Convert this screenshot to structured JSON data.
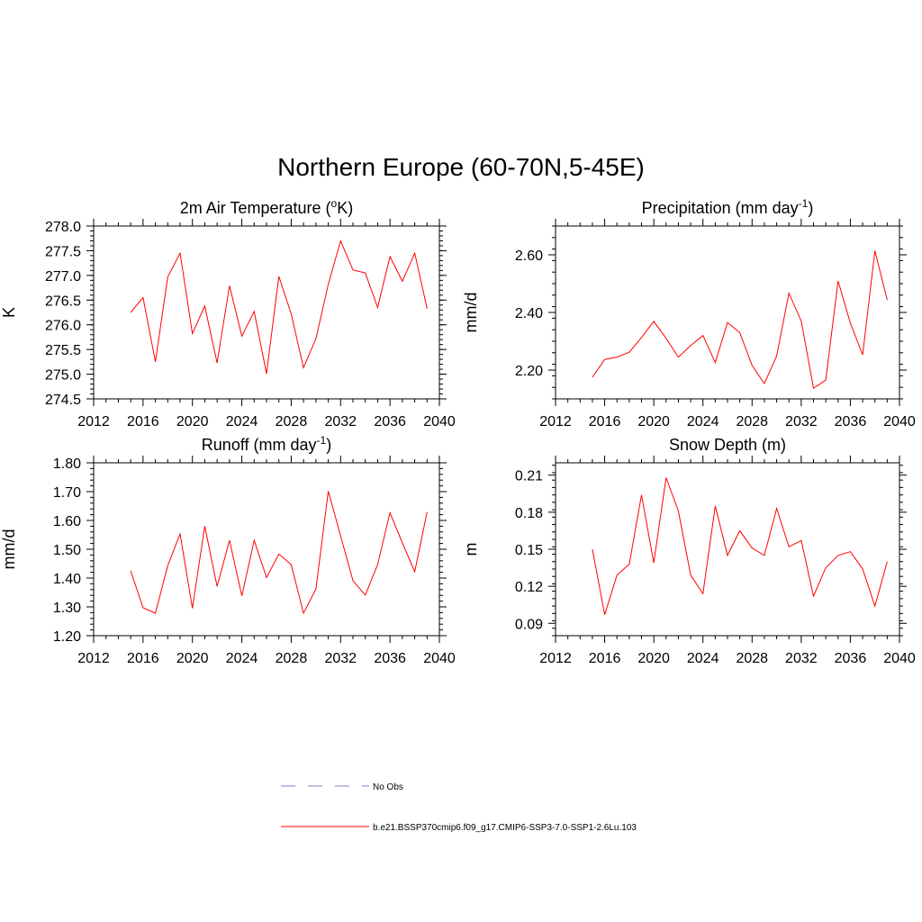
{
  "figure": {
    "title": "Northern Europe (60-70N,5-45E)"
  },
  "legend": {
    "items": [
      {
        "label": "No Obs",
        "color": "#9999dd",
        "dash": "dashed"
      },
      {
        "label": "b.e21.BSSP370cmip6.f09_g17.CMIP6-SSP3-7.0-SSP1-2.6Lu.103",
        "color": "#ff0000",
        "dash": "solid"
      }
    ]
  },
  "chart_data": [
    {
      "id": "temp",
      "type": "line",
      "title": "2m Air Temperature (",
      "title_sup": "o",
      "title_after": "K)",
      "ylabel": "K",
      "xlim": [
        2012,
        2040
      ],
      "ylim": [
        274.5,
        278.0
      ],
      "xticks": [
        "2012",
        "2016",
        "2020",
        "2024",
        "2028",
        "2032",
        "2036",
        "2040"
      ],
      "yticks": [
        "274.5",
        "275.0",
        "275.5",
        "276.0",
        "276.5",
        "277.0",
        "277.5",
        "278.0"
      ],
      "yminor": 0.1,
      "color": "#ff0000",
      "x": [
        2015,
        2016,
        2017,
        2018,
        2019,
        2020,
        2021,
        2022,
        2023,
        2024,
        2025,
        2026,
        2027,
        2028,
        2029,
        2030,
        2031,
        2032,
        2033,
        2034,
        2035,
        2036,
        2037,
        2038,
        2039
      ],
      "values": [
        276.25,
        276.55,
        275.25,
        276.97,
        277.45,
        275.82,
        276.38,
        275.23,
        276.79,
        275.77,
        276.27,
        275.01,
        276.98,
        276.22,
        275.13,
        275.72,
        276.82,
        277.7,
        277.11,
        277.05,
        276.35,
        277.38,
        276.88,
        277.45,
        276.33
      ]
    },
    {
      "id": "precip",
      "type": "line",
      "title": "Precipitation (mm day",
      "title_sup": "-1",
      "title_after": ")",
      "ylabel": "mm/d",
      "xlim": [
        2012,
        2040
      ],
      "ylim": [
        2.1,
        2.7
      ],
      "xticks": [
        "2012",
        "2016",
        "2020",
        "2024",
        "2028",
        "2032",
        "2036",
        "2040"
      ],
      "yticks": [
        "2.20",
        "2.40",
        "2.60"
      ],
      "yminor": 0.04,
      "color": "#ff0000",
      "x": [
        2015,
        2016,
        2017,
        2018,
        2019,
        2020,
        2021,
        2022,
        2023,
        2024,
        2025,
        2026,
        2027,
        2028,
        2029,
        2030,
        2031,
        2032,
        2033,
        2034,
        2035,
        2036,
        2037,
        2038,
        2039
      ],
      "values": [
        2.175,
        2.237,
        2.245,
        2.262,
        2.313,
        2.369,
        2.31,
        2.245,
        2.285,
        2.32,
        2.226,
        2.365,
        2.33,
        2.216,
        2.153,
        2.249,
        2.467,
        2.37,
        2.137,
        2.165,
        2.509,
        2.363,
        2.253,
        2.614,
        2.443
      ]
    },
    {
      "id": "runoff",
      "type": "line",
      "title": "Runoff (mm day",
      "title_sup": "-1",
      "title_after": ")",
      "ylabel": "mm/d",
      "xlim": [
        2012,
        2040
      ],
      "ylim": [
        1.2,
        1.8
      ],
      "xticks": [
        "2012",
        "2016",
        "2020",
        "2024",
        "2028",
        "2032",
        "2036",
        "2040"
      ],
      "yticks": [
        "1.20",
        "1.30",
        "1.40",
        "1.50",
        "1.60",
        "1.70",
        "1.80"
      ],
      "yminor": 0.02,
      "color": "#ff0000",
      "x": [
        2015,
        2016,
        2017,
        2018,
        2019,
        2020,
        2021,
        2022,
        2023,
        2024,
        2025,
        2026,
        2027,
        2028,
        2029,
        2030,
        2031,
        2032,
        2033,
        2034,
        2035,
        2036,
        2037,
        2038,
        2039
      ],
      "values": [
        1.425,
        1.297,
        1.278,
        1.443,
        1.553,
        1.295,
        1.58,
        1.371,
        1.531,
        1.338,
        1.531,
        1.402,
        1.483,
        1.447,
        1.278,
        1.362,
        1.702,
        1.546,
        1.391,
        1.341,
        1.447,
        1.627,
        1.522,
        1.422,
        1.629
      ]
    },
    {
      "id": "snow",
      "type": "line",
      "title": "Snow Depth (m)",
      "title_sup": "",
      "title_after": "",
      "ylabel": "m",
      "xlim": [
        2012,
        2040
      ],
      "ylim": [
        0.08,
        0.22
      ],
      "xticks": [
        "2012",
        "2016",
        "2020",
        "2024",
        "2028",
        "2032",
        "2036",
        "2040"
      ],
      "yticks": [
        "0.09",
        "0.12",
        "0.15",
        "0.18",
        "0.21"
      ],
      "yminor": 0.006,
      "color": "#ff0000",
      "x": [
        2015,
        2016,
        2017,
        2018,
        2019,
        2020,
        2021,
        2022,
        2023,
        2024,
        2025,
        2026,
        2027,
        2028,
        2029,
        2030,
        2031,
        2032,
        2033,
        2034,
        2035,
        2036,
        2037,
        2038,
        2039
      ],
      "values": [
        0.15,
        0.097,
        0.129,
        0.138,
        0.194,
        0.139,
        0.208,
        0.181,
        0.129,
        0.114,
        0.185,
        0.145,
        0.165,
        0.151,
        0.145,
        0.183,
        0.152,
        0.157,
        0.112,
        0.135,
        0.145,
        0.148,
        0.134,
        0.104,
        0.14
      ]
    }
  ]
}
